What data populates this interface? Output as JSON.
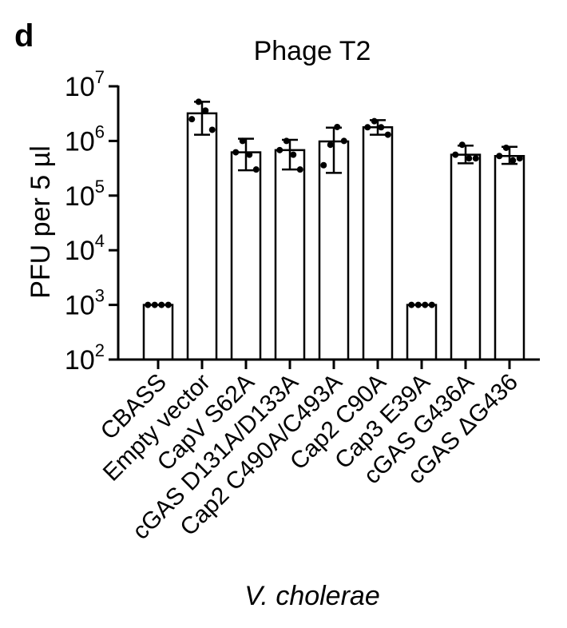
{
  "panel_label": "d",
  "chart_data": {
    "type": "bar",
    "title": "Phage T2",
    "ylabel": "PFU per 5 µl",
    "xlabel": "V. cholerae",
    "yscale": "log",
    "ylim": [
      100,
      10000000
    ],
    "ytick_base": "10",
    "yticks": [
      {
        "value": 100,
        "exp": "2"
      },
      {
        "value": 1000,
        "exp": "3"
      },
      {
        "value": 10000,
        "exp": "4"
      },
      {
        "value": 100000,
        "exp": "5"
      },
      {
        "value": 1000000,
        "exp": "6"
      },
      {
        "value": 10000000,
        "exp": "7"
      }
    ],
    "categories": [
      "CBASS",
      "Empty vector",
      "CapV S62A",
      "cGAS D131A/D133A",
      "Cap2 C490A/C493A",
      "Cap2 C90A",
      "Cap3 E39A",
      "cGAS G436A",
      "cGAS ΔG436"
    ],
    "values": [
      1000,
      3200000,
      620000,
      680000,
      980000,
      1780000,
      1000,
      560000,
      530000
    ],
    "error_low": [
      1000,
      1300000,
      290000,
      300000,
      260000,
      1300000,
      1000,
      390000,
      380000
    ],
    "error_high": [
      1000,
      5200000,
      1100000,
      1050000,
      1750000,
      2400000,
      1000,
      820000,
      780000
    ],
    "points": [
      [
        1000,
        1000,
        1000,
        1000
      ],
      [
        2500000,
        5200000,
        3600000,
        1600000
      ],
      [
        620000,
        1000000,
        560000,
        300000
      ],
      [
        680000,
        1000000,
        560000,
        300000
      ],
      [
        360000,
        850000,
        1800000,
        1000000
      ],
      [
        1780000,
        2300000,
        1780000,
        1300000
      ],
      [
        1000,
        1000,
        1000,
        1000
      ],
      [
        560000,
        850000,
        480000,
        480000
      ],
      [
        530000,
        750000,
        440000,
        480000
      ]
    ],
    "grid": false,
    "legend": "none",
    "bar_fill": "#ffffff",
    "stroke_color": "#000000"
  }
}
